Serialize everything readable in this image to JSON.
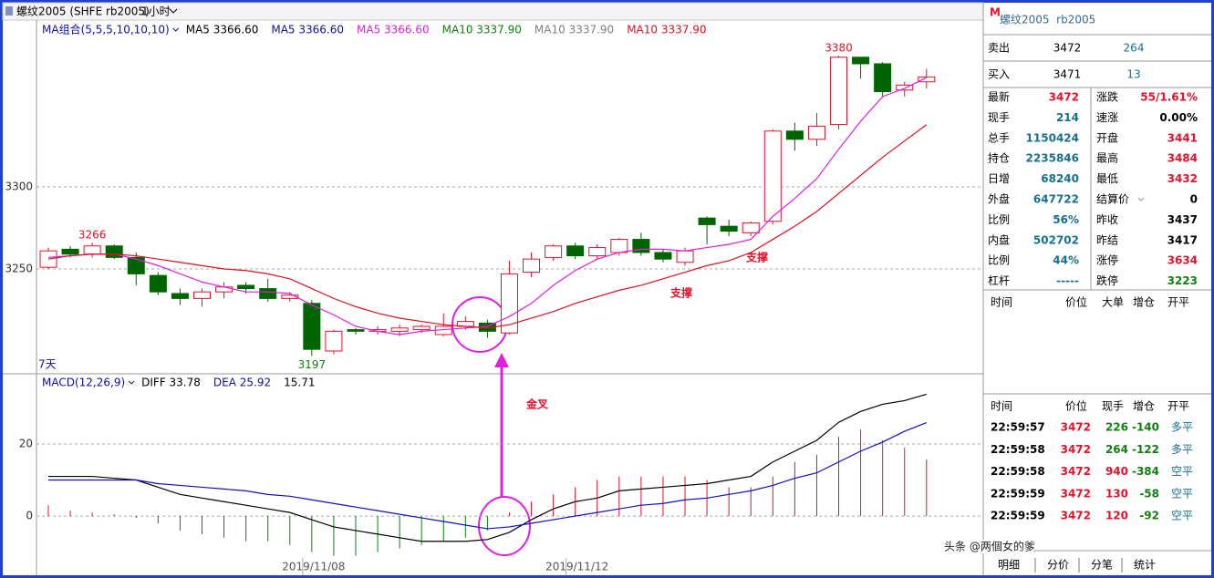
{
  "toolbar": {
    "symbol": "螺纹2005 (SHFE rb2005)",
    "period": "1小时"
  },
  "chart_data": [
    {
      "type": "candlestick",
      "legend_title": "MA组合(5,5,5,10,10,10)",
      "legend_items": [
        {
          "text": "MA5 3366.60",
          "color": "#000000"
        },
        {
          "text": "MA5 3366.60",
          "color": "#1010a0"
        },
        {
          "text": "MA5 3366.60",
          "color": "#e020e0"
        },
        {
          "text": "MA10 3337.90",
          "color": "#108010"
        },
        {
          "text": "MA10 3337.90",
          "color": "#808080"
        },
        {
          "text": "MA10 3337.90",
          "color": "#e01020"
        }
      ],
      "open": [
        3251,
        3262,
        3259,
        3264,
        3257,
        3246,
        3235,
        3232,
        3236,
        3240,
        3238,
        3232,
        3229,
        3200,
        3213,
        3212,
        3212,
        3213,
        3210,
        3215,
        3217,
        3211,
        3248,
        3257,
        3264,
        3258,
        3260,
        3268,
        3260,
        3254,
        3281,
        3276,
        3272,
        3279,
        3334,
        3329,
        3338,
        3379,
        3375,
        3359,
        3364
      ],
      "high": [
        3263,
        3264,
        3266,
        3265,
        3260,
        3248,
        3238,
        3238,
        3242,
        3242,
        3244,
        3236,
        3231,
        3213,
        3214,
        3215,
        3216,
        3216,
        3223,
        3221,
        3219,
        3255,
        3260,
        3265,
        3266,
        3265,
        3269,
        3272,
        3262,
        3263,
        3282,
        3280,
        3279,
        3335,
        3339,
        3345,
        3380,
        3379,
        3376,
        3364,
        3372
      ],
      "low": [
        3250,
        3257,
        3257,
        3256,
        3240,
        3234,
        3228,
        3227,
        3232,
        3235,
        3230,
        3230,
        3197,
        3198,
        3210,
        3210,
        3209,
        3211,
        3209,
        3213,
        3208,
        3210,
        3245,
        3255,
        3256,
        3256,
        3258,
        3258,
        3254,
        3252,
        3265,
        3270,
        3270,
        3277,
        3322,
        3325,
        3335,
        3366,
        3355,
        3355,
        3360
      ],
      "close": [
        3261,
        3259,
        3264,
        3257,
        3247,
        3236,
        3232,
        3236,
        3239,
        3238,
        3232,
        3234,
        3201,
        3212,
        3212,
        3213,
        3214,
        3215,
        3215,
        3218,
        3212,
        3247,
        3256,
        3264,
        3258,
        3263,
        3268,
        3260,
        3256,
        3261,
        3277,
        3273,
        3278,
        3334,
        3329,
        3337,
        3379,
        3375,
        3358,
        3362,
        3367
      ],
      "up_color": "#e8102a",
      "down_color": "#006400",
      "series": [
        {
          "color": "#e020e0",
          "values": [
            3257,
            3258,
            3259,
            3259,
            3256,
            3252,
            3247,
            3242,
            3239,
            3236,
            3236,
            3235,
            3228,
            3222,
            3215,
            3212,
            3210,
            3212,
            3213,
            3214,
            3215,
            3221,
            3229,
            3240,
            3249,
            3256,
            3260,
            3262,
            3262,
            3261,
            3263,
            3265,
            3268,
            3282,
            3293,
            3305,
            3323,
            3340,
            3355,
            3360,
            3366.6
          ]
        },
        {
          "color": "#e01020",
          "values": [
            3256,
            3258,
            3259,
            3259,
            3258,
            3256,
            3254,
            3252,
            3250,
            3249,
            3247,
            3244,
            3238,
            3232,
            3227,
            3223,
            3220,
            3218,
            3216,
            3215,
            3214,
            3216,
            3220,
            3224,
            3229,
            3233,
            3237,
            3240,
            3244,
            3248,
            3252,
            3255,
            3260,
            3268,
            3276,
            3285,
            3296,
            3307,
            3318,
            3328,
            3337.9
          ]
        }
      ],
      "ylim": [
        3186.1,
        3402.2
      ],
      "yticks": [
        3250,
        3300
      ],
      "grid": true,
      "extreme_labels": [
        3266,
        3380,
        3197
      ],
      "annotations": [
        "支撑",
        "支撑",
        "金叉",
        "7天"
      ]
    },
    {
      "type": "macd",
      "legend_title": "MACD(12,26,9)",
      "legend_items": [
        {
          "text": "DIFF 33.78",
          "color": "#000000"
        },
        {
          "text": "DEA 25.92",
          "color": "#1010a0"
        },
        {
          "text": "15.71",
          "color": "#000000"
        }
      ],
      "categories": [
        null,
        null,
        null,
        null,
        null,
        null,
        null,
        null,
        null,
        null,
        null,
        null,
        "2019/11/08",
        null,
        null,
        null,
        null,
        null,
        null,
        null,
        null,
        null,
        null,
        null,
        "2019/11/12",
        null,
        null,
        null,
        null,
        null,
        null,
        null,
        null,
        null,
        null,
        null,
        null,
        null,
        null,
        null,
        null
      ],
      "series": [
        {
          "color": "#000000",
          "values": [
            11,
            11,
            11,
            10.5,
            10,
            8,
            6,
            5,
            4,
            3,
            2,
            1,
            -1,
            -3,
            -4,
            -5,
            -6,
            -7,
            -7,
            -7,
            -6.5,
            -4.5,
            -1,
            2,
            4,
            5,
            7,
            7.5,
            8,
            8.5,
            9,
            10,
            11,
            15,
            18,
            21,
            26,
            29,
            31,
            32,
            33.78
          ]
        },
        {
          "color": "#1010c0",
          "values": [
            10,
            10,
            10,
            10,
            10,
            9,
            8.5,
            8,
            7.5,
            7,
            6,
            5.5,
            4.5,
            3.5,
            2.5,
            1.5,
            0.5,
            -0.5,
            -1.5,
            -2.5,
            -3.5,
            -3,
            -2,
            -1,
            0,
            1,
            2,
            3,
            3.5,
            4.5,
            5,
            6,
            7,
            8.5,
            10.5,
            12,
            15,
            18,
            20.5,
            23.5,
            25.92
          ]
        }
      ],
      "histogram": {
        "up_color": "#e8102a",
        "down_color": "#108010",
        "values": [
          3,
          1.5,
          1,
          0.5,
          -0.5,
          -2,
          -4,
          -5,
          -6,
          -7,
          -7,
          -8,
          -10,
          -11,
          -11,
          -10,
          -9,
          -8,
          -7,
          -6,
          -4,
          1,
          4,
          6,
          8,
          10,
          11,
          11,
          11,
          11,
          10,
          8,
          8,
          11,
          15,
          17,
          22,
          24,
          21,
          19,
          15.71
        ]
      },
      "ylim": [
        -11.1,
        34.9
      ],
      "yticks": [
        0,
        20
      ],
      "grid": true
    }
  ],
  "quote": {
    "logo": "M",
    "title": "螺纹2005  rb2005",
    "ask": {
      "label": "卖出",
      "price": "3472",
      "volume": "264"
    },
    "bid": {
      "label": "买入",
      "price": "3471",
      "volume": "13"
    },
    "left_fields": [
      {
        "label": "最新",
        "value": "3472",
        "color": "#e8102a"
      },
      {
        "label": "现手",
        "value": "214",
        "color": "#17708f"
      },
      {
        "label": "总手",
        "value": "1150424",
        "color": "#17708f"
      },
      {
        "label": "持仓",
        "value": "2235846",
        "color": "#17708f"
      },
      {
        "label": "日增",
        "value": "68240",
        "color": "#17708f"
      },
      {
        "label": "外盘",
        "value": "647722",
        "color": "#17708f"
      },
      {
        "label": "比例",
        "value": "56%",
        "color": "#17708f"
      },
      {
        "label": "内盘",
        "value": "502702",
        "color": "#17708f"
      },
      {
        "label": "比例",
        "value": "44%",
        "color": "#17708f"
      },
      {
        "label": "杠杆",
        "value": "-----",
        "color": "#17708f"
      }
    ],
    "right_fields": [
      {
        "label": "涨跌",
        "value": "55/1.61%",
        "color": "#e8102a"
      },
      {
        "label": "速涨",
        "value": "0.00%",
        "color": "#000000"
      },
      {
        "label": "开盘",
        "value": "3441",
        "color": "#e8102a"
      },
      {
        "label": "最高",
        "value": "3484",
        "color": "#e8102a"
      },
      {
        "label": "最低",
        "value": "3432",
        "color": "#e8102a"
      },
      {
        "label": "结算价",
        "value": "0",
        "color": "#000000"
      },
      {
        "label": "昨收",
        "value": "3437",
        "color": "#000000"
      },
      {
        "label": "昨结",
        "value": "3417",
        "color": "#000000"
      },
      {
        "label": "涨停",
        "value": "3634",
        "color": "#e8102a"
      },
      {
        "label": "跌停",
        "value": "3223",
        "color": "#108010"
      }
    ]
  },
  "big_orders": {
    "headers": [
      "时间",
      "价位",
      "大单",
      "增仓",
      "开平"
    ]
  },
  "ticks_table": {
    "headers": [
      "时间",
      "价位",
      "现手",
      "增仓",
      "开平"
    ],
    "rows": [
      [
        "22:59:57",
        "3472",
        "226",
        "-140",
        "多平"
      ],
      [
        "22:59:58",
        "3472",
        "264",
        "-122",
        "多平"
      ],
      [
        "22:59:58",
        "3472",
        "940",
        "-384",
        "空平"
      ],
      [
        "22:59:59",
        "3472",
        "130",
        "-58",
        "空平"
      ],
      [
        "22:59:59",
        "3472",
        "120",
        "-92",
        "空平"
      ]
    ],
    "colors": [
      [
        "#000000",
        "#e8102a",
        "#108010",
        "#108010",
        "#17708f"
      ],
      [
        "#000000",
        "#e8102a",
        "#108010",
        "#108010",
        "#17708f"
      ],
      [
        "#000000",
        "#e8102a",
        "#e8102a",
        "#108010",
        "#17708f"
      ],
      [
        "#000000",
        "#e8102a",
        "#e8102a",
        "#108010",
        "#17708f"
      ],
      [
        "#000000",
        "#e8102a",
        "#e8102a",
        "#108010",
        "#17708f"
      ]
    ]
  },
  "tabs": [
    "明细",
    "分价",
    "分笔",
    "统计"
  ],
  "watermark": "头条 @两個女的爹"
}
